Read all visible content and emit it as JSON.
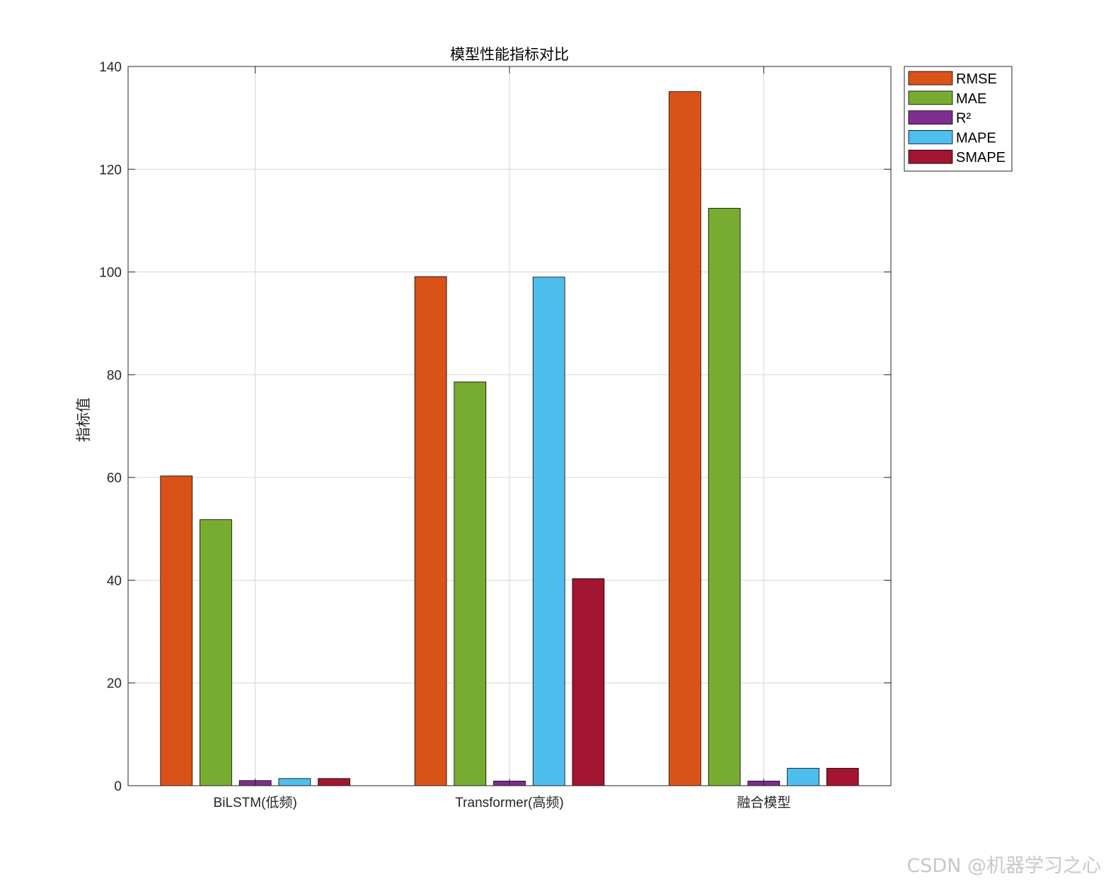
{
  "chart_data": {
    "type": "bar",
    "title": "模型性能指标对比",
    "xlabel": "",
    "ylabel": "指标值",
    "categories": [
      "BiLSTM(低频)",
      "Transformer(高频)",
      "融合模型"
    ],
    "series": [
      {
        "name": "RMSE",
        "color": "#D95319",
        "values": [
          60.3,
          99.1,
          135.1
        ]
      },
      {
        "name": "MAE",
        "color": "#77AC30",
        "values": [
          51.8,
          78.6,
          112.4
        ]
      },
      {
        "name": "R²",
        "color": "#7E2F8E",
        "values": [
          1.0,
          0.9,
          0.9
        ]
      },
      {
        "name": "MAPE",
        "color": "#4DBEEE",
        "values": [
          1.4,
          99.0,
          3.4
        ]
      },
      {
        "name": "SMAPE",
        "color": "#A2142F",
        "values": [
          1.4,
          40.3,
          3.4
        ]
      }
    ],
    "ylim": [
      0,
      140
    ],
    "yticks": [
      0,
      20,
      40,
      60,
      80,
      100,
      120,
      140
    ],
    "grid": true,
    "legend": "outside-top-right"
  },
  "watermark": "CSDN @机器学习之心"
}
